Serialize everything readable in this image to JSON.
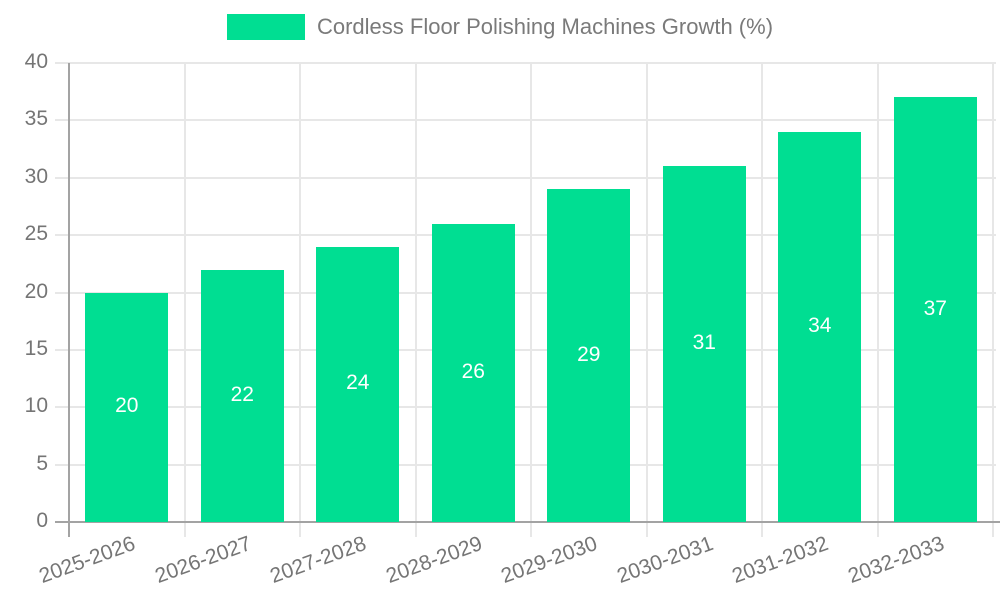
{
  "chart_data": {
    "type": "bar",
    "title": "Cordless Floor Polishing Machines Growth (%)",
    "legend_label": "Cordless Floor Polishing Machines Growth (%)",
    "categories": [
      "2025-2026",
      "2026-2027",
      "2027-2028",
      "2028-2029",
      "2029-2030",
      "2030-2031",
      "2031-2032",
      "2032-2033"
    ],
    "values": [
      20,
      22,
      24,
      26,
      29,
      31,
      34,
      37
    ],
    "value_labels": [
      "20",
      "22",
      "24",
      "26",
      "29",
      "31",
      "34",
      "37"
    ],
    "xlabel": "",
    "ylabel": "",
    "ylim": [
      0,
      40
    ],
    "ytick_step": 5,
    "ytick_labels": [
      "0",
      "5",
      "10",
      "15",
      "20",
      "25",
      "30",
      "35",
      "40"
    ],
    "grid": "on",
    "legend_position": "top-center",
    "colors": {
      "bar": "#00DE92",
      "bar_value_text": "#ffffff",
      "tick_text": "#757575",
      "legend_text": "#7a7a7a",
      "gridline": "#e7e7e7",
      "axis_line": "#a3a3a3",
      "background": "#ffffff"
    }
  }
}
